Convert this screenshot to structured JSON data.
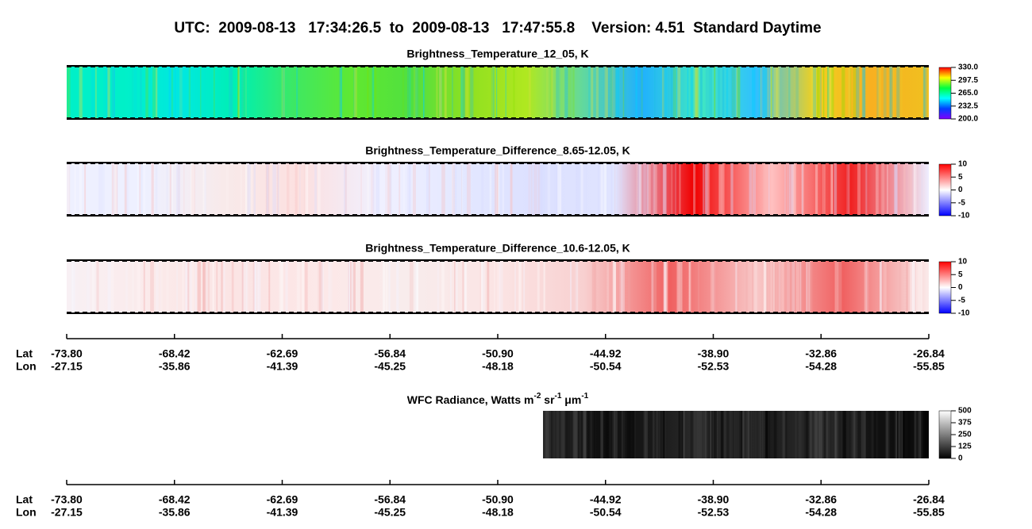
{
  "title": "UTC:  2009-08-13   17:34:26.5  to  2009-08-13   17:47:55.8    Version: 4.51  Standard Daytime",
  "panels": [
    {
      "title": "Brightness_Temperature_12_05, K",
      "colorbar": {
        "colors": [
          "#7f00ff",
          "#0040ff",
          "#00ffff",
          "#00ff40",
          "#ffff00",
          "#ff0000"
        ],
        "ticks": [
          "330.0",
          "297.5",
          "265.0",
          "232.5",
          "200.0"
        ]
      }
    },
    {
      "title": "Brightness_Temperature_Difference_8.65-12.05, K",
      "colorbar": {
        "colors": [
          "#0000ff",
          "#ffffff",
          "#ff0000"
        ],
        "ticks": [
          "10",
          "5",
          "0",
          "-5",
          "-10"
        ]
      }
    },
    {
      "title": "Brightness_Temperature_Difference_10.6-12.05, K",
      "colorbar": {
        "colors": [
          "#0000ff",
          "#ffffff",
          "#ff0000"
        ],
        "ticks": [
          "10",
          "5",
          "0",
          "-5",
          "-10"
        ]
      }
    }
  ],
  "axis": {
    "lat_label": "Lat",
    "lon_label": "Lon",
    "lat": [
      "-73.80",
      "-68.42",
      "-62.69",
      "-56.84",
      "-50.90",
      "-44.92",
      "-38.90",
      "-32.86",
      "-26.84"
    ],
    "lon": [
      "-27.15",
      "-35.86",
      "-41.39",
      "-45.25",
      "-48.18",
      "-50.54",
      "-52.53",
      "-54.28",
      "-55.85"
    ]
  },
  "wfc": {
    "title_parts": [
      {
        "text": "WFC Radiance, Watts m"
      },
      {
        "sup": "-2"
      },
      {
        "text": " sr"
      },
      {
        "sup": "-1"
      },
      {
        "text": " μm"
      },
      {
        "sup": "-1"
      }
    ],
    "colorbar": {
      "colors": [
        "#000000",
        "#ffffff"
      ],
      "ticks": [
        "500",
        "375",
        "250",
        "125",
        "0"
      ]
    }
  }
}
